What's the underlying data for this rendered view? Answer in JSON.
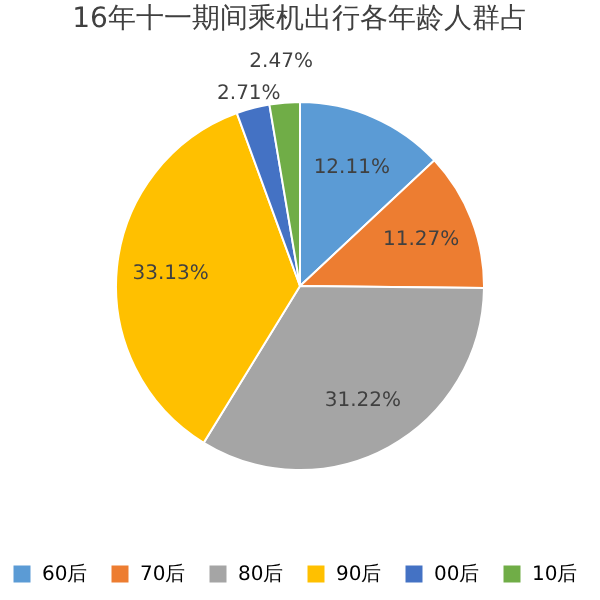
{
  "chart_data": {
    "type": "pie",
    "title": "16年十一期间乘机出行各年龄人群占",
    "categories": [
      "60后",
      "70后",
      "80后",
      "90后",
      "00后",
      "10后"
    ],
    "values": [
      12.11,
      11.27,
      31.22,
      33.13,
      2.71,
      2.47
    ],
    "value_labels": [
      "12.11%",
      "11.27%",
      "31.22%",
      "33.13%",
      "2.71%",
      "2.47%"
    ],
    "colors": [
      "#5b9bd5",
      "#ed7d31",
      "#a5a5a5",
      "#ffc000",
      "#4472c4",
      "#70ad47"
    ],
    "legend": "bottom"
  }
}
